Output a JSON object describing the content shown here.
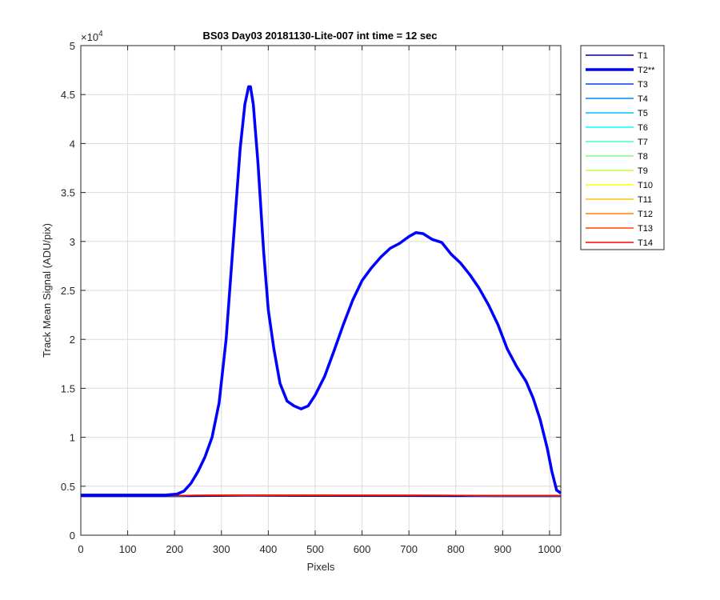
{
  "chart_data": {
    "type": "line",
    "title": "BS03 Day03 20181130-Lite-007 int time = 12 sec",
    "xlabel": "Pixels",
    "ylabel": "Track Mean Signal (ADU/pix)",
    "exponent_base": "×10",
    "exponent_power": "4",
    "xlim": [
      0,
      1024
    ],
    "ylim": [
      0,
      50000
    ],
    "xticks": [
      0,
      100,
      200,
      300,
      400,
      500,
      600,
      700,
      800,
      900,
      1000
    ],
    "yticks": [
      0,
      5000,
      10000,
      15000,
      20000,
      25000,
      30000,
      35000,
      40000,
      45000,
      50000
    ],
    "ytick_labels": [
      "0",
      "0.5",
      "1",
      "1.5",
      "2",
      "2.5",
      "3",
      "3.5",
      "4",
      "4.5",
      "5"
    ],
    "grid": true,
    "legend_position": "outside-right-top",
    "series": [
      {
        "name": "T1",
        "color": "#000090",
        "width": 1.5,
        "baseline": 3950
      },
      {
        "name": "T2**",
        "color": "#0000ff",
        "width": 3.5,
        "highlight": true,
        "points": [
          [
            0,
            4100
          ],
          [
            100,
            4100
          ],
          [
            180,
            4100
          ],
          [
            205,
            4200
          ],
          [
            220,
            4500
          ],
          [
            235,
            5300
          ],
          [
            250,
            6500
          ],
          [
            265,
            8000
          ],
          [
            280,
            10000
          ],
          [
            295,
            13500
          ],
          [
            310,
            20000
          ],
          [
            320,
            26500
          ],
          [
            330,
            33000
          ],
          [
            340,
            39500
          ],
          [
            350,
            44000
          ],
          [
            358,
            45800
          ],
          [
            362,
            45800
          ],
          [
            368,
            44000
          ],
          [
            378,
            38000
          ],
          [
            390,
            29000
          ],
          [
            400,
            23000
          ],
          [
            412,
            19000
          ],
          [
            425,
            15500
          ],
          [
            440,
            13700
          ],
          [
            455,
            13200
          ],
          [
            470,
            12900
          ],
          [
            485,
            13200
          ],
          [
            500,
            14300
          ],
          [
            520,
            16200
          ],
          [
            540,
            18800
          ],
          [
            560,
            21500
          ],
          [
            580,
            24000
          ],
          [
            600,
            26000
          ],
          [
            620,
            27300
          ],
          [
            640,
            28400
          ],
          [
            660,
            29300
          ],
          [
            680,
            29800
          ],
          [
            700,
            30500
          ],
          [
            715,
            30900
          ],
          [
            730,
            30800
          ],
          [
            750,
            30200
          ],
          [
            770,
            29900
          ],
          [
            790,
            28700
          ],
          [
            810,
            27800
          ],
          [
            830,
            26600
          ],
          [
            850,
            25200
          ],
          [
            870,
            23500
          ],
          [
            890,
            21500
          ],
          [
            910,
            19000
          ],
          [
            930,
            17200
          ],
          [
            950,
            15700
          ],
          [
            965,
            14000
          ],
          [
            980,
            11800
          ],
          [
            995,
            8900
          ],
          [
            1005,
            6500
          ],
          [
            1015,
            4600
          ],
          [
            1024,
            4300
          ]
        ]
      },
      {
        "name": "T3",
        "color": "#0040ff",
        "width": 1.5,
        "baseline": 4050
      },
      {
        "name": "T4",
        "color": "#0080ff",
        "width": 1.5,
        "baseline": 4050
      },
      {
        "name": "T5",
        "color": "#00c0ff",
        "width": 1.5,
        "baseline": 4050
      },
      {
        "name": "T6",
        "color": "#00ffff",
        "width": 1.5,
        "baseline": 4050
      },
      {
        "name": "T7",
        "color": "#40ffc0",
        "width": 1.5,
        "baseline": 4050
      },
      {
        "name": "T8",
        "color": "#80ff80",
        "width": 1.5,
        "baseline": 4050
      },
      {
        "name": "T9",
        "color": "#c0ff40",
        "width": 1.5,
        "baseline": 4050
      },
      {
        "name": "T10",
        "color": "#ffff00",
        "width": 1.5,
        "baseline": 4050
      },
      {
        "name": "T11",
        "color": "#ffc000",
        "width": 1.5,
        "baseline": 4050
      },
      {
        "name": "T12",
        "color": "#ff8000",
        "width": 1.5,
        "baseline": 4050
      },
      {
        "name": "T13",
        "color": "#ff4000",
        "width": 1.5,
        "baseline": 4050
      },
      {
        "name": "T14",
        "color": "#ff0000",
        "width": 1.5,
        "baseline": 4050
      }
    ]
  }
}
